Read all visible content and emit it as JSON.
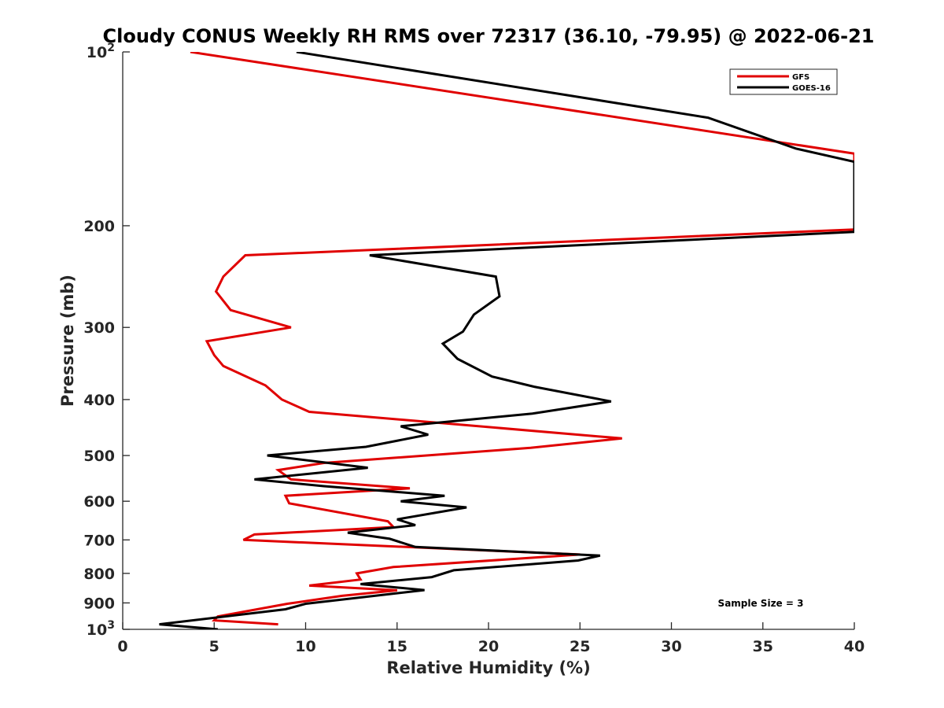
{
  "chart_data": {
    "type": "line",
    "title": "Cloudy CONUS Weekly RH RMS over 72317 (36.10, -79.95) @ 2022-06-21",
    "xlabel": "Relative Humidity (%)",
    "ylabel": "Pressure (mb)",
    "xlim": [
      0,
      40
    ],
    "ylim": [
      100,
      1000
    ],
    "y_scale": "log",
    "y_reversed": true,
    "grid": false,
    "legend_position": "top-right",
    "x_ticks": [
      "0",
      "5",
      "10",
      "15",
      "20",
      "25",
      "30",
      "35",
      "40"
    ],
    "y_ticks": [
      {
        "value": 100,
        "base": "10",
        "exp": "2"
      },
      {
        "value": 200,
        "label": "200"
      },
      {
        "value": 300,
        "label": "300"
      },
      {
        "value": 400,
        "label": "400"
      },
      {
        "value": 500,
        "label": "500"
      },
      {
        "value": 600,
        "label": "600"
      },
      {
        "value": 700,
        "label": "700"
      },
      {
        "value": 800,
        "label": "800"
      },
      {
        "value": 900,
        "label": "900"
      },
      {
        "value": 1000,
        "base": "10",
        "exp": "3"
      }
    ],
    "annotation": "Sample Size = 3",
    "series": [
      {
        "name": "GFS",
        "color": "#e00000",
        "points": [
          [
            3.7,
            100
          ],
          [
            40.0,
            150
          ],
          [
            40.0,
            203
          ],
          [
            6.7,
            225
          ],
          [
            5.5,
            245
          ],
          [
            5.1,
            260
          ],
          [
            5.9,
            280
          ],
          [
            9.2,
            300
          ],
          [
            4.6,
            317
          ],
          [
            5.0,
            335
          ],
          [
            5.5,
            350
          ],
          [
            7.8,
            378
          ],
          [
            8.7,
            400
          ],
          [
            10.2,
            420
          ],
          [
            27.3,
            467
          ],
          [
            22.3,
            485
          ],
          [
            11.0,
            515
          ],
          [
            8.5,
            530
          ],
          [
            9.2,
            550
          ],
          [
            15.7,
            570
          ],
          [
            8.9,
            587
          ],
          [
            9.1,
            605
          ],
          [
            14.5,
            650
          ],
          [
            14.8,
            665
          ],
          [
            7.2,
            685
          ],
          [
            6.6,
            700
          ],
          [
            25.0,
            742
          ],
          [
            14.8,
            780
          ],
          [
            12.8,
            800
          ],
          [
            13.0,
            820
          ],
          [
            10.2,
            840
          ],
          [
            15.0,
            856
          ],
          [
            12.0,
            875
          ],
          [
            9.0,
            903
          ],
          [
            5.2,
            950
          ],
          [
            5.0,
            965
          ],
          [
            8.5,
            980
          ]
        ]
      },
      {
        "name": "GOES-16",
        "color": "#000000",
        "points": [
          [
            9.5,
            100
          ],
          [
            32.0,
            130
          ],
          [
            36.8,
            147
          ],
          [
            40.0,
            155
          ],
          [
            40.0,
            205
          ],
          [
            13.5,
            225
          ],
          [
            20.4,
            245
          ],
          [
            20.6,
            265
          ],
          [
            19.2,
            285
          ],
          [
            18.6,
            305
          ],
          [
            17.5,
            320
          ],
          [
            18.3,
            340
          ],
          [
            20.2,
            365
          ],
          [
            22.5,
            380
          ],
          [
            26.7,
            403
          ],
          [
            22.4,
            423
          ],
          [
            15.2,
            445
          ],
          [
            16.7,
            460
          ],
          [
            13.3,
            483
          ],
          [
            7.9,
            500
          ],
          [
            13.4,
            525
          ],
          [
            7.2,
            550
          ],
          [
            11.0,
            565
          ],
          [
            17.6,
            587
          ],
          [
            15.2,
            600
          ],
          [
            18.8,
            615
          ],
          [
            15.0,
            645
          ],
          [
            16.0,
            660
          ],
          [
            12.3,
            680
          ],
          [
            14.6,
            697
          ],
          [
            16.0,
            720
          ],
          [
            26.1,
            745
          ],
          [
            24.9,
            760
          ],
          [
            18.1,
            790
          ],
          [
            16.9,
            812
          ],
          [
            13.0,
            835
          ],
          [
            16.5,
            855
          ],
          [
            10.0,
            903
          ],
          [
            8.9,
            923
          ],
          [
            2.0,
            980
          ],
          [
            5.2,
            1000
          ]
        ]
      }
    ]
  }
}
